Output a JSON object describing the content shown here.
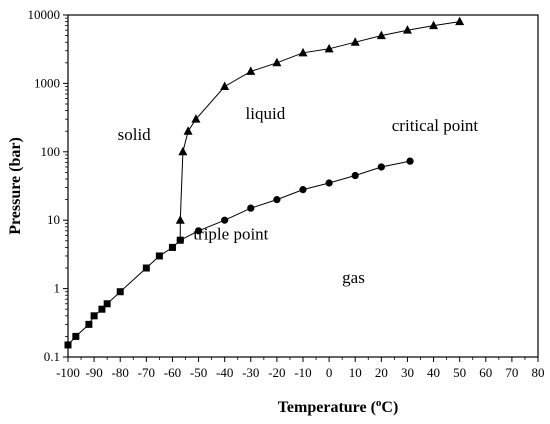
{
  "chart_data": {
    "type": "line",
    "xlabel": "Temperature (",
    "xlabel_sup": "o",
    "xlabel_unit": "C)",
    "ylabel": "Pressure (bar)",
    "xlim": [
      -100,
      80
    ],
    "ylim": [
      0.1,
      10000
    ],
    "y_scale": "log",
    "x_ticks": [
      -100,
      -90,
      -80,
      -70,
      -60,
      -50,
      -40,
      -30,
      -20,
      -10,
      0,
      10,
      20,
      30,
      40,
      50,
      60,
      70,
      80
    ],
    "x_tick_labels": [
      "-100",
      "-90",
      "-80",
      "-70",
      "-60",
      "-50",
      "-40",
      "-30",
      "-20",
      "-10",
      "0",
      "10",
      "20",
      "30",
      "40",
      "50",
      "60",
      "70",
      "80"
    ],
    "y_ticks": [
      0.1,
      1,
      10,
      100,
      1000,
      10000
    ],
    "y_tick_labels": [
      "0.1",
      "1",
      "10",
      "100",
      "1000",
      "10000"
    ],
    "grid": false,
    "series": [
      {
        "marker": "square",
        "x": [
          -100,
          -97,
          -92,
          -90,
          -87,
          -85,
          -80,
          -70,
          -65,
          -60,
          -57
        ],
        "y": [
          0.15,
          0.2,
          0.3,
          0.4,
          0.5,
          0.6,
          0.9,
          2,
          3,
          4,
          5.1
        ]
      },
      {
        "marker": "triangle",
        "x": [
          -57,
          -56,
          -54,
          -51,
          -40,
          -30,
          -20,
          -10,
          0,
          10,
          20,
          30,
          40,
          50
        ],
        "y": [
          10,
          100,
          200,
          300,
          900,
          1500,
          2000,
          2800,
          3200,
          4000,
          5000,
          6000,
          7000,
          8000
        ]
      },
      {
        "marker": "circle",
        "x": [
          -57,
          -50,
          -40,
          -30,
          -20,
          -10,
          0,
          10,
          20,
          31
        ],
        "y": [
          5.1,
          7,
          10,
          15,
          20,
          28,
          35,
          45,
          60,
          73
        ]
      }
    ],
    "annotations": [
      {
        "text": "solid",
        "x": -81,
        "y": 150
      },
      {
        "text": "liquid",
        "x": -32,
        "y": 300
      },
      {
        "text": "critical point",
        "x": 24,
        "y": 200
      },
      {
        "text": "triple point",
        "x": -52,
        "y": 5.2
      },
      {
        "text": "gas",
        "x": 5,
        "y": 1.2
      }
    ],
    "triple_point_link": {
      "x1": -57,
      "y1": 5.1,
      "x2": -57,
      "y2": 10
    }
  }
}
